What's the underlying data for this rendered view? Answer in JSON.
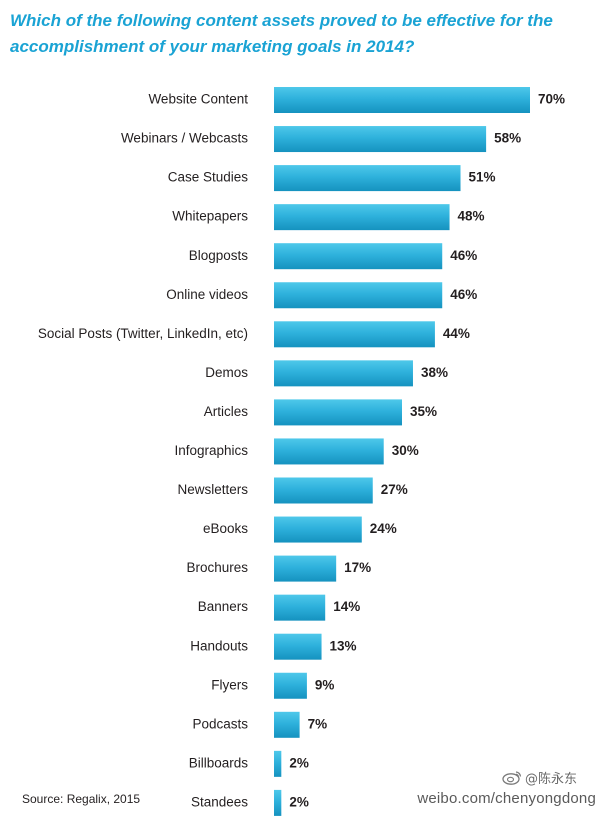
{
  "chart_data": {
    "type": "bar",
    "orientation": "horizontal",
    "title": "Which of the following content assets proved to be effective for the accomplishment of your marketing goals in 2014?",
    "categories": [
      "Website Content",
      "Webinars / Webcasts",
      "Case Studies",
      "Whitepapers",
      "Blogposts",
      "Online videos",
      "Social Posts (Twitter, LinkedIn, etc)",
      "Demos",
      "Articles",
      "Infographics",
      "Newsletters",
      "eBooks",
      "Brochures",
      "Banners",
      "Handouts",
      "Flyers",
      "Podcasts",
      "Billboards",
      "Standees"
    ],
    "values": [
      70,
      58,
      51,
      48,
      46,
      46,
      44,
      38,
      35,
      30,
      27,
      24,
      17,
      14,
      13,
      9,
      7,
      2,
      2
    ],
    "value_labels": [
      "70%",
      "58%",
      "51%",
      "48%",
      "46%",
      "46%",
      "44%",
      "38%",
      "35%",
      "30%",
      "27%",
      "24%",
      "17%",
      "14%",
      "13%",
      "9%",
      "7%",
      "2%",
      "2%"
    ],
    "xlim": [
      0,
      70
    ],
    "grid": false,
    "bar_color_top": "#4ec8ea",
    "bar_color_bottom": "#1592bf"
  },
  "footer": {
    "source": "Source: Regalix, 2015",
    "watermark_handle": "@陈永东",
    "watermark_url": "weibo.com/chenyongdong",
    "watermark_icon": "weibo-icon"
  },
  "colors": {
    "title": "#1aa3d4",
    "text": "#231f20"
  }
}
